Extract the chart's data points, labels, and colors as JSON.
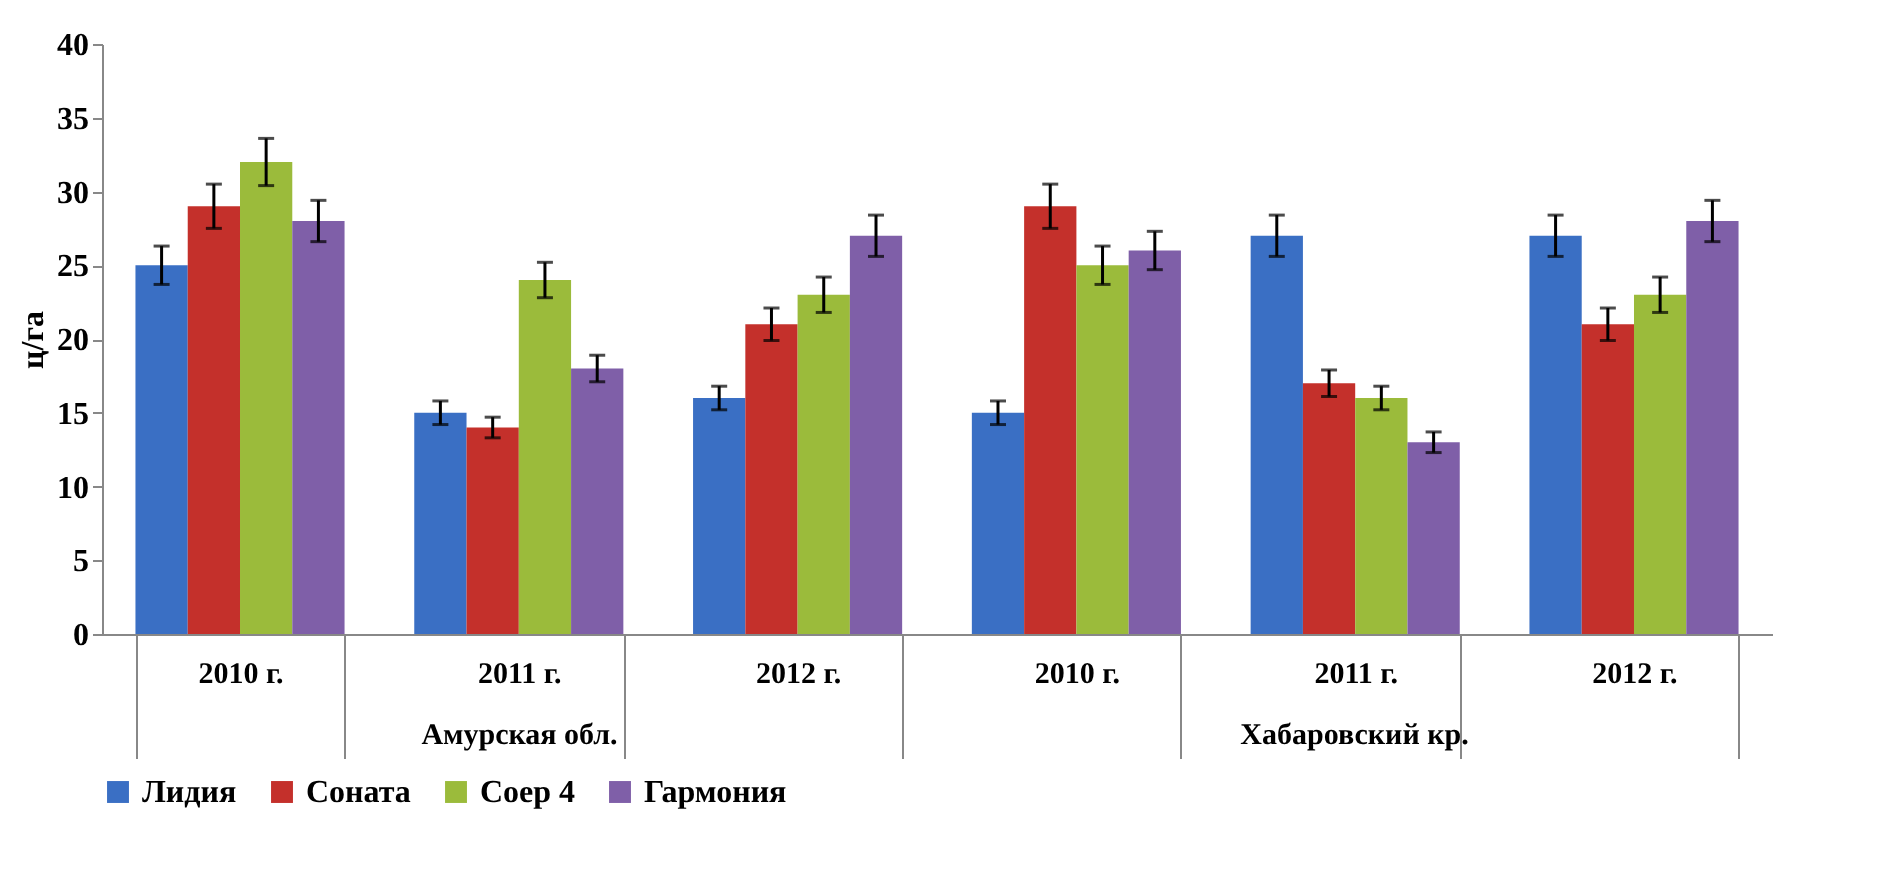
{
  "chart_data": {
    "type": "bar",
    "categories": [
      "2010 г.",
      "2011 г.",
      "2012 г.",
      "2010 г.",
      "2011 г.",
      "2012 г."
    ],
    "annotations": [
      "Амурская обл.",
      "Хабаровский  кр."
    ],
    "ylabel": "ц/га",
    "series": [
      {
        "name": "Лидия",
        "color": "#3a6fc4",
        "values": [
          25,
          15,
          16,
          15,
          27,
          27
        ],
        "errors": [
          1.3,
          0.8,
          0.8,
          0.8,
          1.4,
          1.4
        ]
      },
      {
        "name": "Соната",
        "color": "#c4302b",
        "values": [
          29,
          14,
          21,
          29,
          17,
          21
        ],
        "errors": [
          1.5,
          0.7,
          1.1,
          1.5,
          0.9,
          1.1
        ]
      },
      {
        "name": "Соер 4",
        "color": "#9bbb3b",
        "values": [
          32,
          24,
          23,
          25,
          16,
          23
        ],
        "errors": [
          1.6,
          1.2,
          1.2,
          1.3,
          0.8,
          1.2
        ]
      },
      {
        "name": "Гармония",
        "color": "#7f5fa8",
        "values": [
          28,
          18,
          27,
          26,
          13,
          28
        ],
        "errors": [
          1.4,
          0.9,
          1.4,
          1.3,
          0.7,
          1.4
        ]
      }
    ],
    "ylim": [
      0,
      40
    ],
    "yticks": [
      0,
      5,
      10,
      15,
      20,
      25,
      30,
      35,
      40
    ],
    "grid": false,
    "legend": "bottom"
  }
}
